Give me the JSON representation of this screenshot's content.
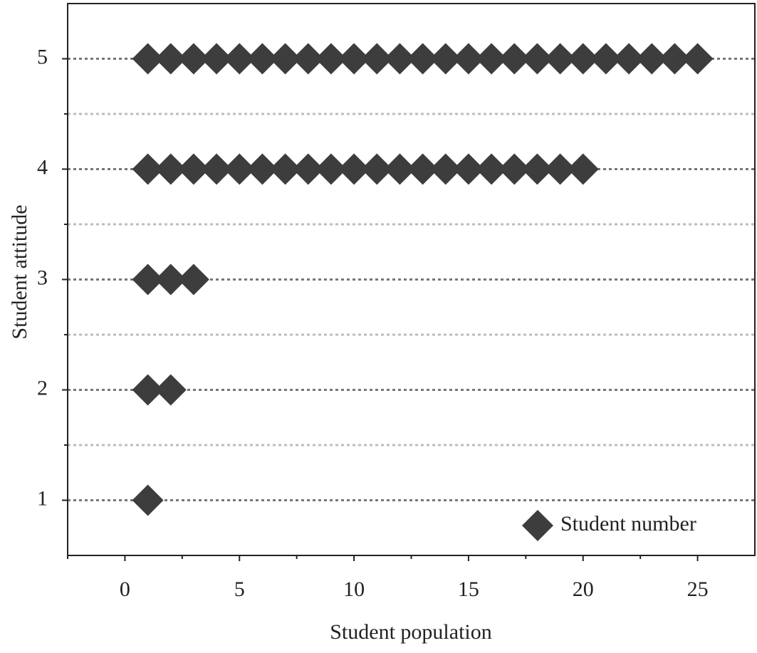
{
  "chart_data": {
    "type": "scatter",
    "xlabel": "Student population",
    "ylabel": "Student attitude",
    "series": [
      {
        "name": "Student number",
        "color": "#3d3d3d",
        "marker": "diamond",
        "x": [
          1,
          2,
          3,
          4,
          5,
          6,
          7,
          8,
          9,
          10,
          11,
          12,
          13,
          14,
          15,
          16,
          17,
          18,
          19,
          20,
          21,
          22,
          23,
          24,
          25,
          1,
          2,
          3,
          4,
          5,
          6,
          7,
          8,
          9,
          10,
          11,
          12,
          13,
          14,
          15,
          16,
          17,
          18,
          19,
          20,
          1,
          2,
          3,
          1,
          2,
          1
        ],
        "y": [
          5,
          5,
          5,
          5,
          5,
          5,
          5,
          5,
          5,
          5,
          5,
          5,
          5,
          5,
          5,
          5,
          5,
          5,
          5,
          5,
          5,
          5,
          5,
          5,
          5,
          4,
          4,
          4,
          4,
          4,
          4,
          4,
          4,
          4,
          4,
          4,
          4,
          4,
          4,
          4,
          4,
          4,
          4,
          4,
          4,
          3,
          3,
          3,
          2,
          2,
          1
        ]
      }
    ],
    "xlim": [
      -2.5,
      27.5
    ],
    "xticks": [
      0,
      5,
      10,
      15,
      20,
      25
    ],
    "xminorticks": [
      -2.5,
      2.5,
      7.5,
      12.5,
      17.5,
      22.5
    ],
    "ylim": [
      0.5,
      5.5
    ],
    "yticks": [
      1,
      2,
      3,
      4,
      5
    ],
    "yminorticks": [
      1.5,
      2.5,
      3.5,
      4.5
    ],
    "grid": true,
    "legend": "lower right"
  }
}
